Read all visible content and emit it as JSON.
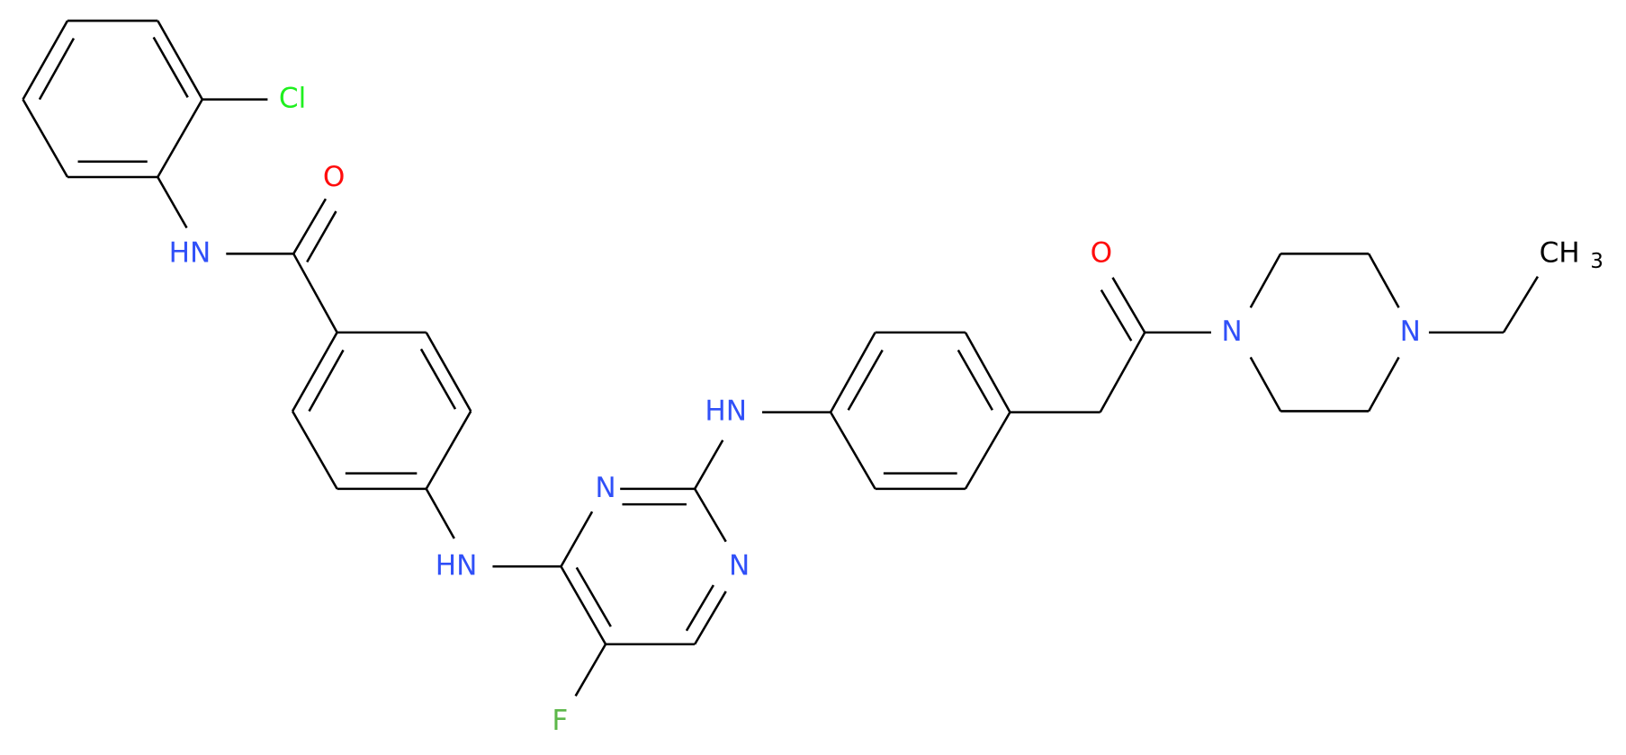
{
  "atoms": [
    {
      "label": "Cl"
    },
    {
      "label": "O"
    },
    {
      "label": "HN"
    },
    {
      "label": "O"
    },
    {
      "label": "N"
    },
    {
      "label": "N"
    },
    {
      "label": "HN"
    },
    {
      "label": "HN"
    },
    {
      "label": "N"
    },
    {
      "label": "N"
    },
    {
      "label": "F"
    },
    {
      "label": "CH",
      "subscript": "3"
    }
  ]
}
